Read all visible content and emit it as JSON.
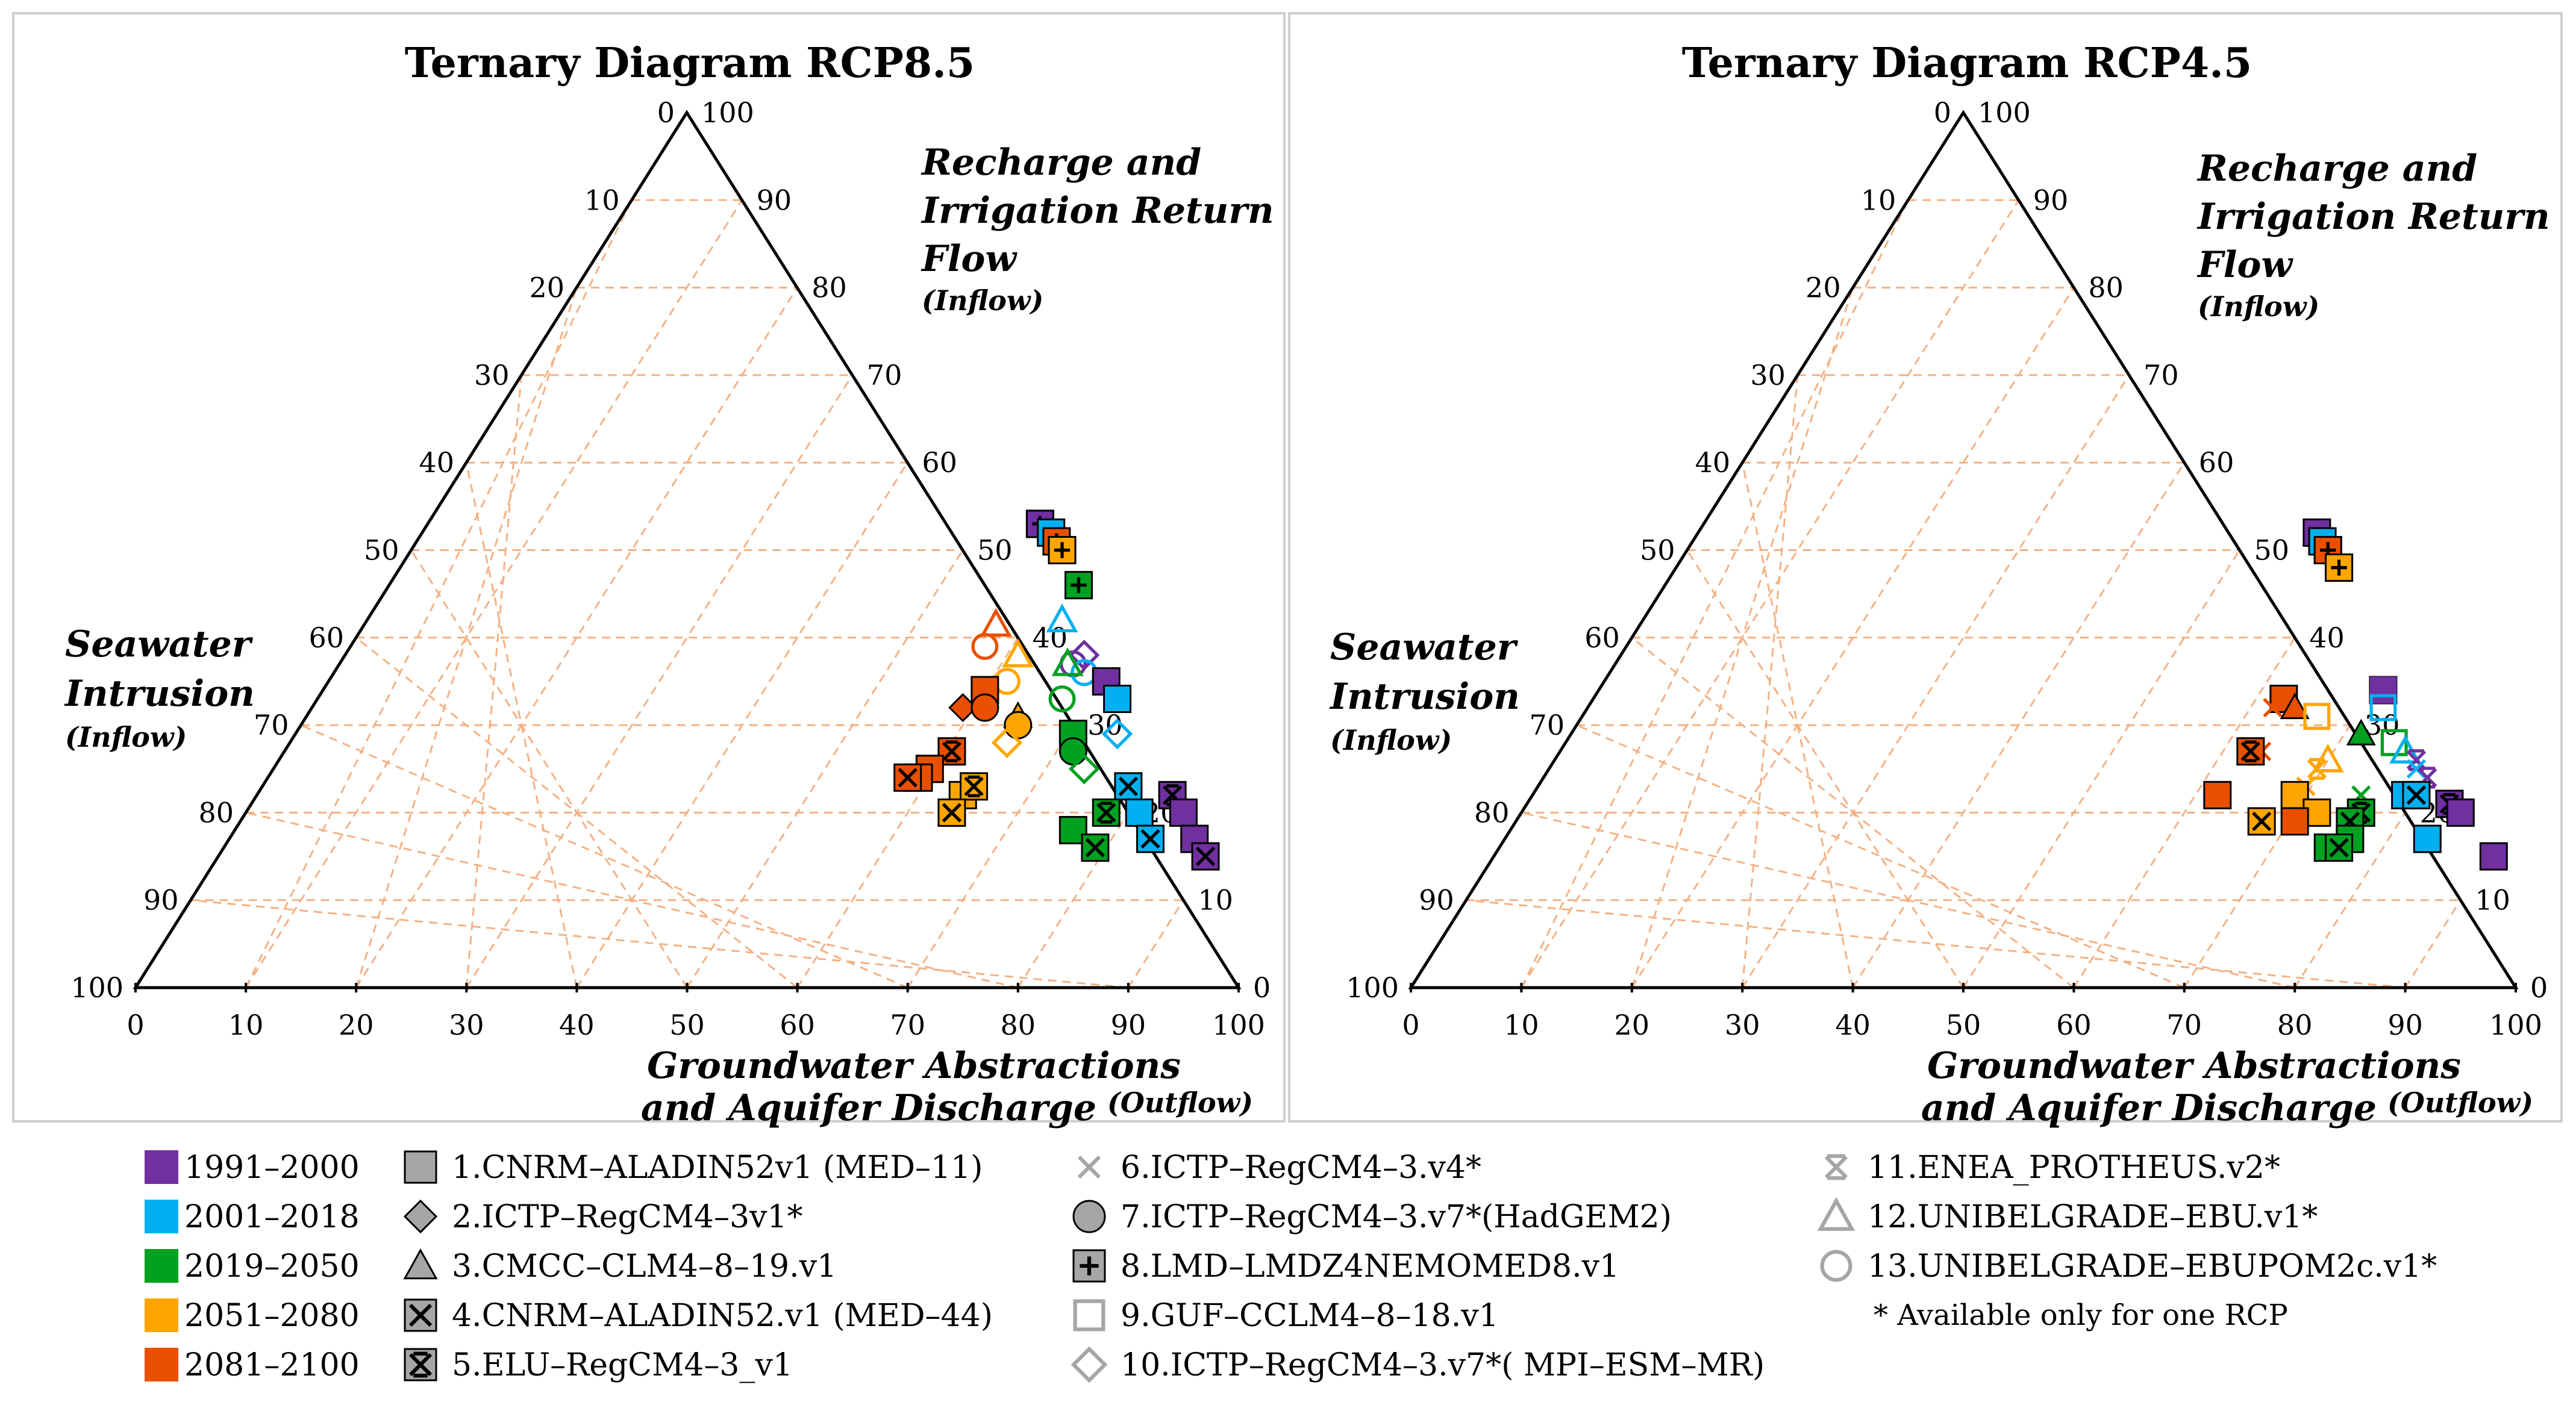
{
  "colors": {
    "p1991": "#7030A0",
    "p2001": "#00B0F0",
    "p2019": "#00A020",
    "p2051": "#FFA500",
    "p2081": "#E85000",
    "grid": "#F4B183",
    "legend_gray": "#A6A6A6"
  },
  "legend": {
    "periods": [
      {
        "key": "p1991",
        "label": "1991–2000"
      },
      {
        "key": "p2001",
        "label": "2001–2018"
      },
      {
        "key": "p2019",
        "label": "2019–2050"
      },
      {
        "key": "p2051",
        "label": "2051–2080"
      },
      {
        "key": "p2081",
        "label": "2081–2100"
      }
    ],
    "models": [
      {
        "id": 1,
        "marker": "square",
        "label": "1.CNRM–ALADIN52v1 (MED–11)"
      },
      {
        "id": 2,
        "marker": "diamond",
        "label": "2.ICTP–RegCM4–3v1*"
      },
      {
        "id": 3,
        "marker": "triangle",
        "label": "3.CMCC–CLM4–8–19.v1"
      },
      {
        "id": 4,
        "marker": "square-x",
        "label": "4.CNRM–ALADIN52.v1 (MED–44)"
      },
      {
        "id": 5,
        "marker": "square-xbar",
        "label": "5.ELU–RegCM4–3_v1"
      },
      {
        "id": 6,
        "marker": "x",
        "label": "6.ICTP–RegCM4–3.v4*"
      },
      {
        "id": 7,
        "marker": "circle",
        "label": "7.ICTP–RegCM4–3.v7*(HadGEM2)"
      },
      {
        "id": 8,
        "marker": "square-plus",
        "label": "8.LMD–LMDZ4NEMOMED8.v1"
      },
      {
        "id": 9,
        "marker": "square-open",
        "label": "9.GUF–CCLM4–8–18.v1"
      },
      {
        "id": 10,
        "marker": "diamond-open",
        "label": "10.ICTP–RegCM4–3.v7*( MPI–ESM–MR)"
      },
      {
        "id": 11,
        "marker": "xbar",
        "label": "11.ENEA_PROTHEUS.v2*"
      },
      {
        "id": 12,
        "marker": "triangle-open",
        "label": "12.UNIBELGRADE–EBU.v1*"
      },
      {
        "id": 13,
        "marker": "circle-open",
        "label": "13.UNIBELGRADE–EBUPOM2c.v1*"
      }
    ],
    "note": "* Available only for one RCP"
  },
  "chart_data": [
    {
      "type": "ternary",
      "title": "Ternary Diagram RCP8.5",
      "axes": {
        "right_edge_label": [
          "Recharge and",
          "Irrigation Return",
          "Flow"
        ],
        "right_edge_sub": "(Inflow)",
        "left_edge_label": [
          "Seawater",
          "Intrusion"
        ],
        "left_edge_sub": "(Inflow)",
        "bottom_label": [
          "Groundwater Abstractions",
          "and Aquifer Discharge"
        ],
        "bottom_sub": "(Outflow)"
      },
      "ticks": [
        "0",
        "10",
        "20",
        "30",
        "40",
        "50",
        "60",
        "70",
        "80",
        "90",
        "100"
      ],
      "points": [
        {
          "m": 1,
          "p": "p1991",
          "gw": 82,
          "re": 53,
          "sw": -35
        },
        {
          "m": 8,
          "p": "p1991",
          "gw": 82,
          "re": 53,
          "sw": -35
        },
        {
          "m": 1,
          "p": "p2001",
          "gw": 83,
          "re": 52,
          "sw": -35
        },
        {
          "m": 8,
          "p": "p2081",
          "gw": 83.5,
          "re": 51,
          "sw": -34.5
        },
        {
          "m": 1,
          "p": "p2051",
          "gw": 84,
          "re": 50,
          "sw": -34
        },
        {
          "m": 8,
          "p": "p2051",
          "gw": 84,
          "re": 50,
          "sw": -34
        },
        {
          "m": 8,
          "p": "p2019",
          "gw": 85.5,
          "re": 46,
          "sw": -31.5
        },
        {
          "m": 12,
          "p": "p2081",
          "gw": 78,
          "re": 41.5,
          "sw": -19.5
        },
        {
          "m": 13,
          "p": "p2081",
          "gw": 77,
          "re": 39,
          "sw": -16
        },
        {
          "m": 12,
          "p": "p2001",
          "gw": 84,
          "re": 42,
          "sw": -26
        },
        {
          "m": 12,
          "p": "p2051",
          "gw": 80,
          "re": 38,
          "sw": -18
        },
        {
          "m": 10,
          "p": "p1991",
          "gw": 86,
          "re": 38,
          "sw": -24
        },
        {
          "m": 13,
          "p": "p1991",
          "gw": 85,
          "re": 37,
          "sw": -22
        },
        {
          "m": 13,
          "p": "p2001",
          "gw": 86,
          "re": 36,
          "sw": -22
        },
        {
          "m": 12,
          "p": "p2019",
          "gw": 84.5,
          "re": 37,
          "sw": -21.5
        },
        {
          "m": 13,
          "p": "p2051",
          "gw": 79,
          "re": 35,
          "sw": -14
        },
        {
          "m": 13,
          "p": "p2019",
          "gw": 84,
          "re": 33,
          "sw": -17
        },
        {
          "m": 1,
          "p": "p1991",
          "gw": 88,
          "re": 35,
          "sw": -23
        },
        {
          "m": 1,
          "p": "p2001",
          "gw": 89,
          "re": 33,
          "sw": -22
        },
        {
          "m": 1,
          "p": "p2081",
          "gw": 77,
          "re": 34,
          "sw": -11
        },
        {
          "m": 2,
          "p": "p2081",
          "gw": 75,
          "re": 32,
          "sw": -7
        },
        {
          "m": 7,
          "p": "p2081",
          "gw": 77,
          "re": 32,
          "sw": -9
        },
        {
          "m": 3,
          "p": "p2051",
          "gw": 80,
          "re": 31,
          "sw": -11
        },
        {
          "m": 7,
          "p": "p2051",
          "gw": 80,
          "re": 30,
          "sw": -10
        },
        {
          "m": 10,
          "p": "p2001",
          "gw": 89,
          "re": 29,
          "sw": -18
        },
        {
          "m": 1,
          "p": "p2019",
          "gw": 85,
          "re": 29,
          "sw": -14
        },
        {
          "m": 7,
          "p": "p2019",
          "gw": 85,
          "re": 27,
          "sw": -12
        },
        {
          "m": 10,
          "p": "p2051",
          "gw": 79,
          "re": 28,
          "sw": -7
        },
        {
          "m": 10,
          "p": "p2019",
          "gw": 86,
          "re": 25,
          "sw": -11
        },
        {
          "m": 5,
          "p": "p2081",
          "gw": 74,
          "re": 27,
          "sw": -1
        },
        {
          "m": 1,
          "p": "p2081",
          "gw": 72,
          "re": 25,
          "sw": 3
        },
        {
          "m": 1,
          "p": "p2081",
          "gw": 71,
          "re": 24,
          "sw": 5
        },
        {
          "m": 4,
          "p": "p2081",
          "gw": 70,
          "re": 24,
          "sw": 6
        },
        {
          "m": 1,
          "p": "p2051",
          "gw": 75,
          "re": 22,
          "sw": 3
        },
        {
          "m": 5,
          "p": "p2051",
          "gw": 76,
          "re": 23,
          "sw": 1
        },
        {
          "m": 4,
          "p": "p2051",
          "gw": 74,
          "re": 20,
          "sw": 6
        },
        {
          "m": 4,
          "p": "p2001",
          "gw": 90,
          "re": 23,
          "sw": -13
        },
        {
          "m": 5,
          "p": "p1991",
          "gw": 94,
          "re": 22,
          "sw": -16
        },
        {
          "m": 1,
          "p": "p1991",
          "gw": 95,
          "re": 20,
          "sw": -15
        },
        {
          "m": 5,
          "p": "p2019",
          "gw": 88,
          "re": 20,
          "sw": -8
        },
        {
          "m": 1,
          "p": "p2001",
          "gw": 91,
          "re": 20,
          "sw": -11
        },
        {
          "m": 1,
          "p": "p2019",
          "gw": 85,
          "re": 18,
          "sw": -3
        },
        {
          "m": 4,
          "p": "p2001",
          "gw": 92,
          "re": 17,
          "sw": -9
        },
        {
          "m": 4,
          "p": "p2019",
          "gw": 87,
          "re": 16,
          "sw": -3
        },
        {
          "m": 1,
          "p": "p1991",
          "gw": 96,
          "re": 17,
          "sw": -13
        },
        {
          "m": 4,
          "p": "p1991",
          "gw": 97,
          "re": 15,
          "sw": -12
        }
      ]
    },
    {
      "type": "ternary",
      "title": "Ternary Diagram RCP4.5",
      "axes": {
        "right_edge_label": [
          "Recharge and",
          "Irrigation Return",
          "Flow"
        ],
        "right_edge_sub": "(Inflow)",
        "left_edge_label": [
          "Seawater",
          "Intrusion"
        ],
        "left_edge_sub": "(Inflow)",
        "bottom_label": [
          "Groundwater Abstractions",
          "and Aquifer Discharge"
        ],
        "bottom_sub": "(Outflow)"
      },
      "ticks": [
        "0",
        "10",
        "20",
        "30",
        "40",
        "50",
        "60",
        "70",
        "80",
        "90",
        "100"
      ],
      "points": [
        {
          "m": 1,
          "p": "p1991",
          "gw": 82,
          "re": 52,
          "sw": -34
        },
        {
          "m": 1,
          "p": "p2001",
          "gw": 82.5,
          "re": 51,
          "sw": -33.5
        },
        {
          "m": 1,
          "p": "p2081",
          "gw": 83,
          "re": 50,
          "sw": -33
        },
        {
          "m": 8,
          "p": "p2081",
          "gw": 83,
          "re": 50,
          "sw": -33
        },
        {
          "m": 1,
          "p": "p2051",
          "gw": 84,
          "re": 48,
          "sw": -32
        },
        {
          "m": 8,
          "p": "p2051",
          "gw": 84,
          "re": 48,
          "sw": -32
        },
        {
          "m": 1,
          "p": "p1991",
          "gw": 88,
          "re": 34,
          "sw": -22
        },
        {
          "m": 9,
          "p": "p1991",
          "gw": 88,
          "re": 34,
          "sw": -22
        },
        {
          "m": 9,
          "p": "p2001",
          "gw": 88,
          "re": 32,
          "sw": -20
        },
        {
          "m": 1,
          "p": "p2081",
          "gw": 79,
          "re": 33,
          "sw": -12
        },
        {
          "m": 3,
          "p": "p2081",
          "gw": 80,
          "re": 32,
          "sw": -12
        },
        {
          "m": 6,
          "p": "p2081",
          "gw": 78,
          "re": 32,
          "sw": -10
        },
        {
          "m": 9,
          "p": "p2051",
          "gw": 82,
          "re": 31,
          "sw": -13
        },
        {
          "m": 3,
          "p": "p2019",
          "gw": 86,
          "re": 29,
          "sw": -15
        },
        {
          "m": 9,
          "p": "p2019",
          "gw": 89,
          "re": 28,
          "sw": -17
        },
        {
          "m": 12,
          "p": "p2001",
          "gw": 90,
          "re": 27,
          "sw": -17
        },
        {
          "m": 11,
          "p": "p1991",
          "gw": 91,
          "re": 26,
          "sw": -17
        },
        {
          "m": 6,
          "p": "p2081",
          "gw": 77,
          "re": 27,
          "sw": -4
        },
        {
          "m": 5,
          "p": "p2081",
          "gw": 76,
          "re": 27,
          "sw": -3
        },
        {
          "m": 12,
          "p": "p2051",
          "gw": 83,
          "re": 26,
          "sw": -9
        },
        {
          "m": 11,
          "p": "p2051",
          "gw": 82,
          "re": 25,
          "sw": -7
        },
        {
          "m": 6,
          "p": "p2001",
          "gw": 91,
          "re": 25,
          "sw": -16
        },
        {
          "m": 11,
          "p": "p1991",
          "gw": 92,
          "re": 24,
          "sw": -16
        },
        {
          "m": 6,
          "p": "p2051",
          "gw": 81,
          "re": 23,
          "sw": -4
        },
        {
          "m": 1,
          "p": "p2051",
          "gw": 80,
          "re": 22,
          "sw": -2
        },
        {
          "m": 1,
          "p": "p2001",
          "gw": 90,
          "re": 22,
          "sw": -12
        },
        {
          "m": 4,
          "p": "p2001",
          "gw": 91,
          "re": 22,
          "sw": -13
        },
        {
          "m": 6,
          "p": "p2019",
          "gw": 86,
          "re": 22,
          "sw": -8
        },
        {
          "m": 5,
          "p": "p1991",
          "gw": 94,
          "re": 21,
          "sw": -15
        },
        {
          "m": 1,
          "p": "p1991",
          "gw": 95,
          "re": 20,
          "sw": -15
        },
        {
          "m": 5,
          "p": "p2019",
          "gw": 86,
          "re": 20,
          "sw": -6
        },
        {
          "m": 1,
          "p": "p2081",
          "gw": 73,
          "re": 22,
          "sw": 5
        },
        {
          "m": 1,
          "p": "p2051",
          "gw": 82,
          "re": 20,
          "sw": -2
        },
        {
          "m": 1,
          "p": "p2081",
          "gw": 80,
          "re": 19,
          "sw": 1
        },
        {
          "m": 4,
          "p": "p2051",
          "gw": 77,
          "re": 19,
          "sw": 4
        },
        {
          "m": 4,
          "p": "p2019",
          "gw": 85,
          "re": 19,
          "sw": -4
        },
        {
          "m": 1,
          "p": "p2019",
          "gw": 85,
          "re": 17,
          "sw": -2
        },
        {
          "m": 1,
          "p": "p2001",
          "gw": 92,
          "re": 17,
          "sw": -9
        },
        {
          "m": 1,
          "p": "p2019",
          "gw": 83,
          "re": 16,
          "sw": 1
        },
        {
          "m": 4,
          "p": "p2019",
          "gw": 84,
          "re": 16,
          "sw": 0
        },
        {
          "m": 1,
          "p": "p1991",
          "gw": 98,
          "re": 15,
          "sw": -13
        }
      ]
    }
  ]
}
